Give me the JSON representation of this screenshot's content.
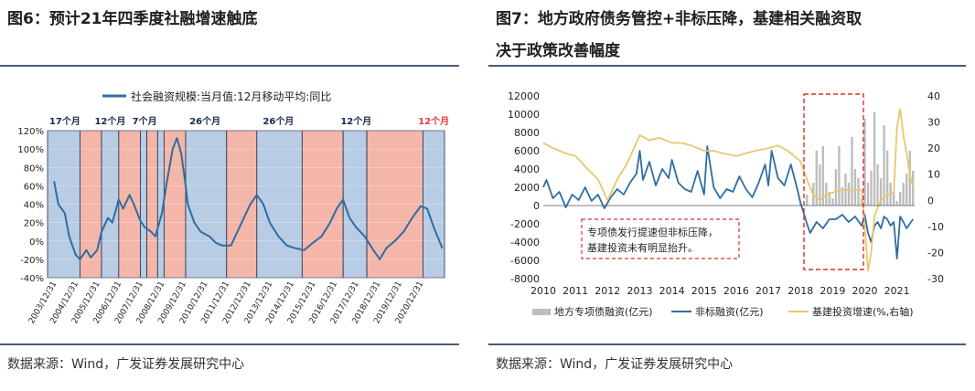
{
  "left": {
    "title": "图6：预计21年四季度社融增速触底",
    "source": "数据来源：Wind，广发证券发展研究中心",
    "chart_data": {
      "type": "line",
      "title": "",
      "xlabel": "",
      "ylabel": "",
      "ylim": [
        -40,
        120
      ],
      "y_ticks": [
        "120%",
        "100%",
        "80%",
        "60%",
        "40%",
        "20%",
        "0%",
        "-20%",
        "-40%"
      ],
      "x_ticks": [
        "2003/12/31",
        "2004/12/31",
        "2005/12/31",
        "2006/12/31",
        "2007/12/31",
        "2008/12/31",
        "2009/12/31",
        "2010/12/31",
        "2011/12/31",
        "2012/12/31",
        "2013/12/31",
        "2014/12/31",
        "2015/12/31",
        "2016/12/31",
        "2017/12/31",
        "2018/12/31",
        "2019/12/31",
        "2020/12/31"
      ],
      "legend": "社会融资规模:当月值:12月移动平均:同比",
      "legend_position": "top",
      "series": [
        {
          "name": "社会融资规模:当月值:12月移动平均:同比",
          "color": "#2e6da4",
          "points": [
            [
              2003.8,
              65
            ],
            [
              2004.0,
              40
            ],
            [
              2004.3,
              30
            ],
            [
              2004.5,
              5
            ],
            [
              2004.8,
              -15
            ],
            [
              2005.0,
              -20
            ],
            [
              2005.3,
              -10
            ],
            [
              2005.5,
              -18
            ],
            [
              2005.8,
              -10
            ],
            [
              2006.0,
              10
            ],
            [
              2006.3,
              25
            ],
            [
              2006.5,
              20
            ],
            [
              2006.8,
              45
            ],
            [
              2007.0,
              35
            ],
            [
              2007.3,
              50
            ],
            [
              2007.5,
              40
            ],
            [
              2007.8,
              22
            ],
            [
              2008.0,
              15
            ],
            [
              2008.3,
              10
            ],
            [
              2008.5,
              5
            ],
            [
              2008.8,
              30
            ],
            [
              2009.0,
              60
            ],
            [
              2009.3,
              100
            ],
            [
              2009.5,
              112
            ],
            [
              2009.7,
              95
            ],
            [
              2009.9,
              60
            ],
            [
              2010.0,
              40
            ],
            [
              2010.3,
              20
            ],
            [
              2010.6,
              10
            ],
            [
              2011.0,
              5
            ],
            [
              2011.3,
              -2
            ],
            [
              2011.6,
              -5
            ],
            [
              2012.0,
              -5
            ],
            [
              2012.3,
              10
            ],
            [
              2012.6,
              25
            ],
            [
              2012.9,
              40
            ],
            [
              2013.2,
              50
            ],
            [
              2013.5,
              40
            ],
            [
              2013.8,
              20
            ],
            [
              2014.2,
              5
            ],
            [
              2014.6,
              -5
            ],
            [
              2015.0,
              -8
            ],
            [
              2015.4,
              -10
            ],
            [
              2015.8,
              -2
            ],
            [
              2016.2,
              5
            ],
            [
              2016.6,
              20
            ],
            [
              2016.9,
              35
            ],
            [
              2017.2,
              45
            ],
            [
              2017.5,
              25
            ],
            [
              2017.8,
              15
            ],
            [
              2018.2,
              5
            ],
            [
              2018.6,
              -10
            ],
            [
              2018.9,
              -20
            ],
            [
              2019.2,
              -8
            ],
            [
              2019.6,
              0
            ],
            [
              2020.0,
              10
            ],
            [
              2020.4,
              25
            ],
            [
              2020.8,
              38
            ],
            [
              2021.1,
              35
            ],
            [
              2021.4,
              15
            ],
            [
              2021.8,
              -8
            ]
          ]
        }
      ],
      "period_labels": [
        {
          "text": "17个月",
          "color": "#1a2a4a"
        },
        {
          "text": "12个月",
          "color": "#1a2a4a"
        },
        {
          "text": "7个月",
          "color": "#1a2a4a"
        },
        {
          "text": "26个月",
          "color": "#1a2a4a"
        },
        {
          "text": "26个月",
          "color": "#1a2a4a"
        },
        {
          "text": "12个月",
          "color": "#1a2a4a"
        },
        {
          "text": "12个月",
          "color": "#e23b3b"
        }
      ],
      "shaded_periods": [
        {
          "start": 2003.5,
          "end": 2005.0,
          "kind": "down",
          "color": "#b8cce4"
        },
        {
          "start": 2005.0,
          "end": 2006.0,
          "kind": "up",
          "color": "#f4b6a8"
        },
        {
          "start": 2006.0,
          "end": 2006.8,
          "kind": "down",
          "color": "#b8cce4"
        },
        {
          "start": 2006.8,
          "end": 2007.8,
          "kind": "up",
          "color": "#f4b6a8"
        },
        {
          "start": 2007.8,
          "end": 2008.1,
          "kind": "down",
          "color": "#b8cce4"
        },
        {
          "start": 2008.1,
          "end": 2008.6,
          "kind": "up",
          "color": "#f4b6a8"
        },
        {
          "start": 2008.6,
          "end": 2008.9,
          "kind": "down",
          "color": "#b8cce4"
        },
        {
          "start": 2008.9,
          "end": 2009.9,
          "kind": "up",
          "color": "#f4b6a8"
        },
        {
          "start": 2009.9,
          "end": 2011.8,
          "kind": "down",
          "color": "#b8cce4"
        },
        {
          "start": 2011.8,
          "end": 2013.2,
          "kind": "up",
          "color": "#f4b6a8"
        },
        {
          "start": 2013.2,
          "end": 2015.3,
          "kind": "down",
          "color": "#b8cce4"
        },
        {
          "start": 2015.3,
          "end": 2017.2,
          "kind": "up",
          "color": "#f4b6a8"
        },
        {
          "start": 2017.2,
          "end": 2018.3,
          "kind": "down",
          "color": "#b8cce4"
        },
        {
          "start": 2018.3,
          "end": 2020.9,
          "kind": "up",
          "color": "#f4b6a8"
        },
        {
          "start": 2020.9,
          "end": 2021.9,
          "kind": "down",
          "color": "#b8cce4"
        }
      ]
    }
  },
  "right": {
    "title_line1": "图7：地方政府债务管控+非标压降，基建相关融资取",
    "title_line2": "决于政策改善幅度",
    "source": "数据来源：Wind，广发证券发展研究中心",
    "annotation_line1": "专项债发行提速但非标压降，",
    "annotation_line2": "基建投资未有明显抬升。",
    "chart_data": {
      "type": "bar",
      "title": "",
      "xlabel": "",
      "ylabel": "",
      "ylim": [
        -8000,
        12000
      ],
      "y2lim": [
        -30,
        40
      ],
      "y_ticks": [
        "12000",
        "10000",
        "8000",
        "6000",
        "4000",
        "2000",
        "0",
        "-2000",
        "-4000",
        "-6000",
        "-8000"
      ],
      "y2_ticks": [
        "40",
        "30",
        "20",
        "10",
        "0",
        "-10",
        "-20",
        "-30"
      ],
      "x_ticks": [
        "2010",
        "2011",
        "2012",
        "2013",
        "2014",
        "2015",
        "2016",
        "2017",
        "2018",
        "2019",
        "2020",
        "2021"
      ],
      "legend": [
        "地方专项债融资(亿元)",
        "非标融资(亿元)",
        "基建投资增速(%,右轴)"
      ],
      "legend_position": "bottom",
      "series": [
        {
          "name": "地方专项债融资(亿元)",
          "color": "#bdbdbd",
          "kind": "bar",
          "points": [
            [
              2018.0,
              200
            ],
            [
              2018.2,
              1200
            ],
            [
              2018.4,
              2500
            ],
            [
              2018.5,
              6000
            ],
            [
              2018.6,
              4500
            ],
            [
              2018.7,
              6500
            ],
            [
              2018.8,
              2500
            ],
            [
              2018.9,
              1500
            ],
            [
              2019.0,
              800
            ],
            [
              2019.1,
              4000
            ],
            [
              2019.2,
              6500
            ],
            [
              2019.3,
              2000
            ],
            [
              2019.4,
              3500
            ],
            [
              2019.5,
              2500
            ],
            [
              2019.6,
              7500
            ],
            [
              2019.7,
              4000
            ],
            [
              2019.8,
              3000
            ],
            [
              2019.9,
              800
            ],
            [
              2020.0,
              9500
            ],
            [
              2020.1,
              2500
            ],
            [
              2020.2,
              3800
            ],
            [
              2020.3,
              10200
            ],
            [
              2020.4,
              4500
            ],
            [
              2020.5,
              3000
            ],
            [
              2020.6,
              8800
            ],
            [
              2020.7,
              6000
            ],
            [
              2020.8,
              2500
            ],
            [
              2020.9,
              1500
            ],
            [
              2021.0,
              500
            ],
            [
              2021.1,
              1500
            ],
            [
              2021.2,
              2500
            ],
            [
              2021.3,
              3500
            ],
            [
              2021.4,
              6000
            ],
            [
              2021.5,
              3800
            ]
          ]
        },
        {
          "name": "非标融资(亿元)",
          "color": "#2e6da4",
          "kind": "line",
          "points": [
            [
              2010.0,
              2000
            ],
            [
              2010.1,
              2800
            ],
            [
              2010.3,
              800
            ],
            [
              2010.5,
              1500
            ],
            [
              2010.7,
              -200
            ],
            [
              2010.9,
              1200
            ],
            [
              2011.1,
              600
            ],
            [
              2011.3,
              2000
            ],
            [
              2011.5,
              500
            ],
            [
              2011.7,
              1200
            ],
            [
              2011.9,
              -300
            ],
            [
              2012.1,
              900
            ],
            [
              2012.3,
              1800
            ],
            [
              2012.5,
              1200
            ],
            [
              2012.7,
              2500
            ],
            [
              2012.9,
              3500
            ],
            [
              2013.0,
              6000
            ],
            [
              2013.1,
              2800
            ],
            [
              2013.3,
              4800
            ],
            [
              2013.5,
              2200
            ],
            [
              2013.7,
              4000
            ],
            [
              2013.9,
              3000
            ],
            [
              2014.0,
              5000
            ],
            [
              2014.2,
              2500
            ],
            [
              2014.4,
              1800
            ],
            [
              2014.6,
              1500
            ],
            [
              2014.8,
              3800
            ],
            [
              2015.0,
              1200
            ],
            [
              2015.1,
              6500
            ],
            [
              2015.3,
              2000
            ],
            [
              2015.5,
              800
            ],
            [
              2015.7,
              1800
            ],
            [
              2015.9,
              1500
            ],
            [
              2016.1,
              3200
            ],
            [
              2016.3,
              1800
            ],
            [
              2016.5,
              900
            ],
            [
              2016.7,
              2500
            ],
            [
              2016.9,
              4500
            ],
            [
              2017.0,
              2200
            ],
            [
              2017.1,
              6000
            ],
            [
              2017.3,
              3000
            ],
            [
              2017.5,
              2200
            ],
            [
              2017.7,
              4500
            ],
            [
              2017.9,
              1800
            ],
            [
              2018.0,
              300
            ],
            [
              2018.1,
              -800
            ],
            [
              2018.2,
              -2000
            ],
            [
              2018.3,
              -3000
            ],
            [
              2018.5,
              -1800
            ],
            [
              2018.7,
              -2500
            ],
            [
              2018.9,
              -1500
            ],
            [
              2019.1,
              -1500
            ],
            [
              2019.3,
              -1000
            ],
            [
              2019.5,
              -1800
            ],
            [
              2019.7,
              -1200
            ],
            [
              2019.9,
              -2200
            ],
            [
              2020.0,
              -1000
            ],
            [
              2020.1,
              -3000
            ],
            [
              2020.2,
              -4000
            ],
            [
              2020.3,
              -2200
            ],
            [
              2020.4,
              -1800
            ],
            [
              2020.5,
              -2500
            ],
            [
              2020.6,
              -1200
            ],
            [
              2020.7,
              -1500
            ],
            [
              2020.8,
              -2200
            ],
            [
              2020.9,
              -1800
            ],
            [
              2021.0,
              -5800
            ],
            [
              2021.1,
              -1200
            ],
            [
              2021.2,
              -1800
            ],
            [
              2021.3,
              -2500
            ],
            [
              2021.5,
              -1500
            ]
          ]
        },
        {
          "name": "基建投资增速(%,右轴)",
          "color": "#e8c86e",
          "kind": "line",
          "axis": "right",
          "points": [
            [
              2010.0,
              22
            ],
            [
              2010.3,
              20
            ],
            [
              2010.7,
              18
            ],
            [
              2011.0,
              17
            ],
            [
              2011.3,
              13
            ],
            [
              2011.7,
              8
            ],
            [
              2012.0,
              0
            ],
            [
              2012.3,
              8
            ],
            [
              2012.6,
              14
            ],
            [
              2013.0,
              25
            ],
            [
              2013.3,
              23
            ],
            [
              2013.6,
              24
            ],
            [
              2014.0,
              22
            ],
            [
              2014.3,
              22
            ],
            [
              2014.6,
              21
            ],
            [
              2015.0,
              19
            ],
            [
              2015.3,
              19
            ],
            [
              2015.6,
              18
            ],
            [
              2016.0,
              17
            ],
            [
              2016.3,
              18
            ],
            [
              2016.6,
              19
            ],
            [
              2017.0,
              20
            ],
            [
              2017.3,
              21
            ],
            [
              2017.6,
              19
            ],
            [
              2018.0,
              15
            ],
            [
              2018.2,
              8
            ],
            [
              2018.4,
              2
            ],
            [
              2018.6,
              0
            ],
            [
              2018.8,
              2
            ],
            [
              2019.0,
              3
            ],
            [
              2019.3,
              4
            ],
            [
              2019.6,
              4
            ],
            [
              2019.9,
              4
            ],
            [
              2020.0,
              -10
            ],
            [
              2020.1,
              -27
            ],
            [
              2020.2,
              -20
            ],
            [
              2020.3,
              -6
            ],
            [
              2020.5,
              0
            ],
            [
              2020.7,
              2
            ],
            [
              2020.9,
              3
            ],
            [
              2021.0,
              28
            ],
            [
              2021.1,
              35
            ],
            [
              2021.2,
              25
            ],
            [
              2021.3,
              18
            ],
            [
              2021.4,
              10
            ],
            [
              2021.5,
              5
            ]
          ]
        }
      ]
    }
  }
}
